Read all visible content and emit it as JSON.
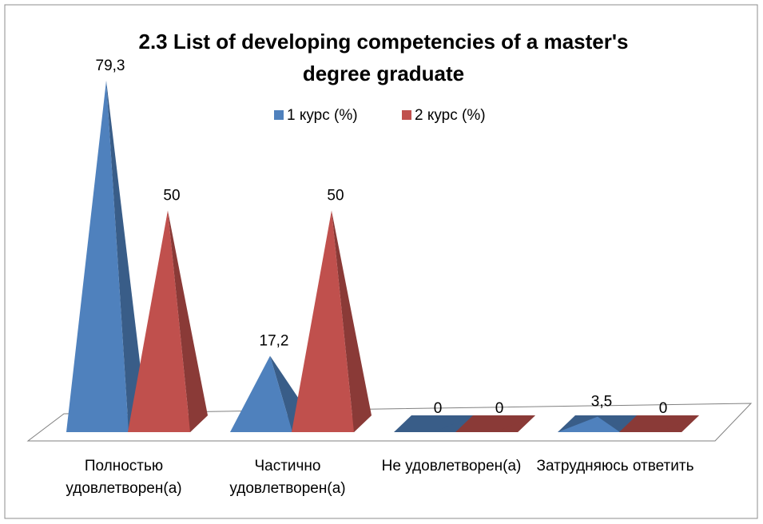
{
  "chart_data": {
    "type": "pyramid",
    "title": "2.3 List of developing competencies of a master's degree graduate",
    "categories": [
      "Полностью удовлетворен(а)",
      "Частично удовлетворен(а)",
      "Не удовлетворен(а)",
      "Затрудняюсь ответить"
    ],
    "series": [
      {
        "name": "1 курс (%)",
        "color": "#4f81bd",
        "values": [
          79.3,
          17.2,
          0,
          3.5
        ],
        "value_labels": [
          "79,3",
          "17,2",
          "0",
          "3,5"
        ]
      },
      {
        "name": "2 курс (%)",
        "color": "#c0504d",
        "values": [
          50,
          50,
          0,
          0
        ],
        "value_labels": [
          "50",
          "50",
          "0",
          "0"
        ]
      }
    ],
    "legend": "top"
  }
}
